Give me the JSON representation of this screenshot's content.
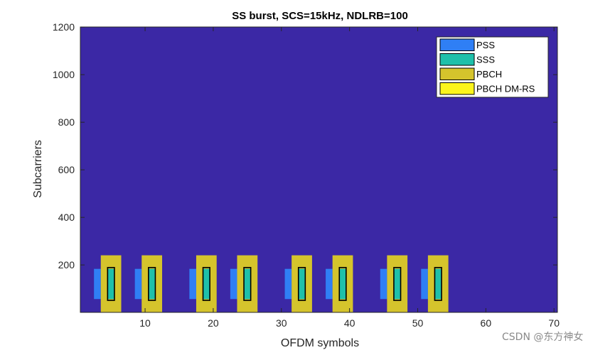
{
  "chart_data": {
    "type": "heatmap",
    "title": "SS burst, SCS=15kHz, NDLRB=100",
    "xlabel": "OFDM symbols",
    "ylabel": "Subcarriers",
    "xlim": [
      0.5,
      70.5
    ],
    "ylim": [
      0.5,
      1200.5
    ],
    "xticks": [
      10,
      20,
      30,
      40,
      50,
      60,
      70
    ],
    "yticks": [
      200,
      400,
      600,
      800,
      1000,
      1200
    ],
    "grid": false,
    "legend_position": "top-right",
    "background_color": "#3b28a5",
    "legend": [
      {
        "name": "PSS",
        "color": "#2f7ff5"
      },
      {
        "name": "SSS",
        "color": "#1fc0aa"
      },
      {
        "name": "PBCH",
        "color": "#d5c42c"
      },
      {
        "name": "PBCH DM-RS",
        "color": "#fcf51c"
      }
    ],
    "ssb_start_symbols": [
      3,
      9,
      17,
      23,
      31,
      37,
      45,
      51
    ],
    "ssb_subcarrier_range": [
      1,
      240
    ],
    "pss_subcarrier_range": [
      57,
      183
    ],
    "sss_subcarrier_range": [
      57,
      183
    ],
    "pbch_middle_subcarrier_ranges": [
      [
        1,
        48
      ],
      [
        193,
        240
      ]
    ],
    "edge_color": "#000000"
  },
  "watermark": "CSDN @东方神女"
}
